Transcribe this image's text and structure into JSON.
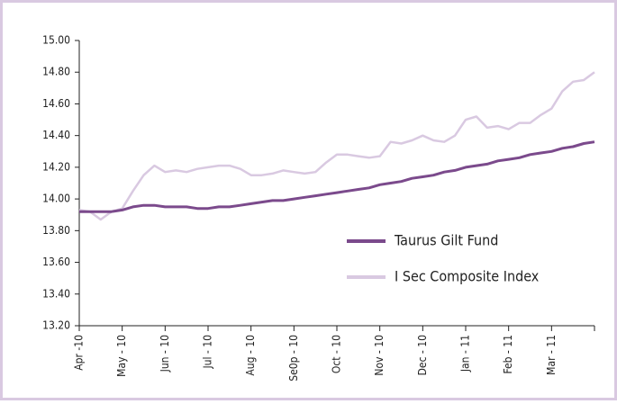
{
  "chart_data": {
    "type": "line",
    "x": [
      0,
      0.25,
      0.5,
      0.75,
      1,
      1.25,
      1.5,
      1.75,
      2,
      2.25,
      2.5,
      2.75,
      3,
      3.25,
      3.5,
      3.75,
      4,
      4.25,
      4.5,
      4.75,
      5,
      5.25,
      5.5,
      5.75,
      6,
      6.25,
      6.5,
      6.75,
      7,
      7.25,
      7.5,
      7.75,
      8,
      8.25,
      8.5,
      8.75,
      9,
      9.25,
      9.5,
      9.75,
      10,
      10.25,
      10.5,
      10.75,
      11,
      11.25,
      11.5,
      11.75,
      12
    ],
    "xlim": [
      0,
      12
    ],
    "xticks": [
      {
        "value": 0,
        "label": "Apr -10"
      },
      {
        "value": 1,
        "label": "May - 10"
      },
      {
        "value": 2,
        "label": "Jun - 10"
      },
      {
        "value": 3,
        "label": "Jul - 10"
      },
      {
        "value": 4,
        "label": "Aug - 10"
      },
      {
        "value": 5,
        "label": "Se0p - 10"
      },
      {
        "value": 6,
        "label": "Oct - 10"
      },
      {
        "value": 7,
        "label": "Nov - 10"
      },
      {
        "value": 8,
        "label": "Dec - 10"
      },
      {
        "value": 9,
        "label": "Jan - 11"
      },
      {
        "value": 10,
        "label": "Feb - 11"
      },
      {
        "value": 11,
        "label": "Mar - 11"
      }
    ],
    "ylim": [
      13.2,
      15.0
    ],
    "yticks": [
      {
        "value": 13.2,
        "label": "13.20"
      },
      {
        "value": 13.4,
        "label": "13.40"
      },
      {
        "value": 13.6,
        "label": "13.60"
      },
      {
        "value": 13.8,
        "label": "13.80"
      },
      {
        "value": 14.0,
        "label": "14.00"
      },
      {
        "value": 14.2,
        "label": "14.20"
      },
      {
        "value": 14.4,
        "label": "14.40"
      },
      {
        "value": 14.6,
        "label": "14.60"
      },
      {
        "value": 14.8,
        "label": "14.80"
      },
      {
        "value": 15.0,
        "label": "15.00"
      }
    ],
    "grid": false,
    "series": [
      {
        "name": "Taurus Gilt Fund",
        "color": "#7b4a8c",
        "values": [
          13.92,
          13.92,
          13.92,
          13.92,
          13.93,
          13.95,
          13.96,
          13.96,
          13.95,
          13.95,
          13.95,
          13.94,
          13.94,
          13.95,
          13.95,
          13.96,
          13.97,
          13.98,
          13.99,
          13.99,
          14.0,
          14.01,
          14.02,
          14.03,
          14.04,
          14.05,
          14.06,
          14.07,
          14.09,
          14.1,
          14.11,
          14.13,
          14.14,
          14.15,
          14.17,
          14.18,
          14.2,
          14.21,
          14.22,
          14.24,
          14.25,
          14.26,
          14.28,
          14.29,
          14.3,
          14.32,
          14.33,
          14.35,
          14.36
        ]
      },
      {
        "name": "I Sec Composite Index",
        "color": "#d9c9e1",
        "values": [
          13.93,
          13.92,
          13.87,
          13.92,
          13.94,
          14.05,
          14.15,
          14.21,
          14.17,
          14.18,
          14.17,
          14.19,
          14.2,
          14.21,
          14.21,
          14.19,
          14.15,
          14.15,
          14.16,
          14.18,
          14.17,
          14.16,
          14.17,
          14.23,
          14.28,
          14.28,
          14.27,
          14.26,
          14.27,
          14.36,
          14.35,
          14.37,
          14.4,
          14.37,
          14.36,
          14.4,
          14.5,
          14.52,
          14.45,
          14.46,
          14.44,
          14.48,
          14.48,
          14.53,
          14.57,
          14.68,
          14.74,
          14.75,
          14.8
        ]
      }
    ]
  }
}
